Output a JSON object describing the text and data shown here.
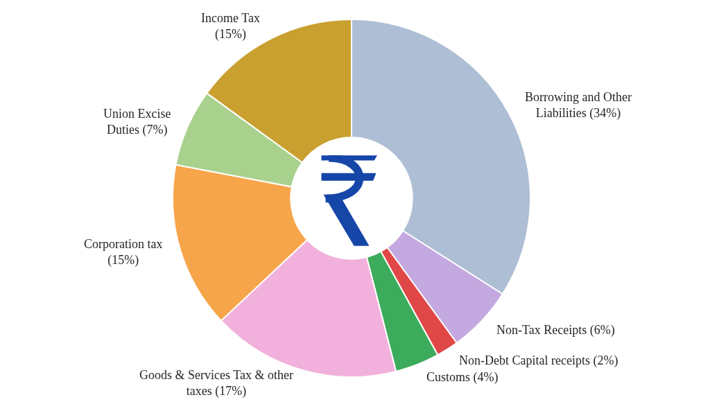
{
  "chart_data": {
    "type": "donut",
    "categories": [
      "Borrowing and Other Liabilities",
      "Non-Tax Receipts",
      "Non-Debt Capital receipts",
      "Customs",
      "Goods & Services Tax & other taxes",
      "Corporation tax",
      "Union Excise Duties",
      "Income Tax"
    ],
    "values": [
      34,
      6,
      2,
      4,
      17,
      15,
      7,
      15
    ],
    "value_labels": [
      "(34%)",
      "(6%)",
      "(2%)",
      "(4%)",
      "(17%)",
      "(15%)",
      "(7%)",
      "(15%)"
    ],
    "colors": [
      "#aebed4",
      "#c4a8e0",
      "#e04848",
      "#3cab5c",
      "#f2b0dc",
      "#f7a54a",
      "#a9d18e",
      "#c9a030"
    ]
  }
}
